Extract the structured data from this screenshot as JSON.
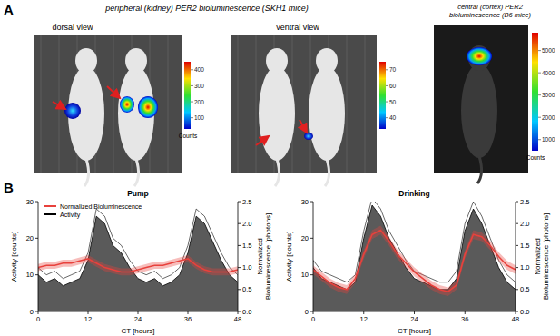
{
  "panel_a": {
    "label": "A",
    "title": "peripheral (kidney) PER2 bioluminescence (SKH1 mice)",
    "views": [
      {
        "label": "dorsal view",
        "colorbar": {
          "range": [
            30,
            450
          ],
          "ticks": [
            100,
            200,
            300,
            400
          ],
          "label": "Counts"
        }
      },
      {
        "label": "ventral view",
        "colorbar": {
          "range": [
            33,
            75
          ],
          "ticks": [
            40,
            50,
            60,
            70
          ]
        }
      }
    ],
    "central": {
      "lines": [
        "central (cortex) PER2",
        "bioluminescence (B6 mice)"
      ],
      "colorbar": {
        "range": [
          500,
          5800
        ],
        "ticks": [
          1000,
          2000,
          3000,
          4000,
          5000
        ],
        "label": "Counts"
      }
    }
  },
  "panel_b": {
    "label": "B"
  },
  "chart_data": [
    {
      "type": "line",
      "title": "Pump",
      "x": [
        0,
        2,
        4,
        6,
        8,
        10,
        12,
        14,
        16,
        18,
        20,
        22,
        24,
        26,
        28,
        30,
        32,
        34,
        36,
        38,
        40,
        42,
        44,
        46,
        48
      ],
      "xlim": [
        0,
        48
      ],
      "xticks": [
        0,
        12,
        24,
        36,
        48
      ],
      "xlabel": "CT [hours]",
      "ylabel": "Activity [counts]",
      "ylim": [
        0,
        30
      ],
      "yticks": [
        0,
        10,
        20,
        30
      ],
      "y2label": "Normalized Bioluminescence [photons]",
      "y2lim": [
        0,
        2.5
      ],
      "y2ticks": [
        {
          "value": 0,
          "label": "0.0"
        },
        {
          "value": 0.5,
          "label": "0.5"
        },
        {
          "value": 1,
          "label": "1.0"
        },
        {
          "value": 1.5,
          "label": "1.5"
        },
        {
          "value": 2,
          "label": "2.0"
        },
        {
          "value": 2.5,
          "label": "2.5"
        }
      ],
      "legend": "upper left",
      "series": [
        {
          "name": "Normalized Bioluminescence",
          "type": "line",
          "color": "#e8413c",
          "axis": "y2",
          "values": [
            1.0,
            1.05,
            1.05,
            1.1,
            1.1,
            1.15,
            1.2,
            1.1,
            1.0,
            0.95,
            0.9,
            0.9,
            0.95,
            1.0,
            1.05,
            1.05,
            1.1,
            1.15,
            1.2,
            1.05,
            0.95,
            0.9,
            0.9,
            0.9,
            0.95
          ],
          "error": [
            0.08,
            0.08,
            0.08,
            0.08,
            0.08,
            0.08,
            0.08,
            0.08,
            0.08,
            0.08,
            0.08,
            0.08,
            0.08,
            0.08,
            0.08,
            0.08,
            0.08,
            0.08,
            0.08,
            0.08,
            0.08,
            0.08,
            0.08,
            0.08,
            0.08
          ]
        },
        {
          "name": "Activity",
          "type": "area",
          "color": "#5a5a5a",
          "values": [
            10,
            8,
            9,
            7,
            8,
            9,
            14,
            26,
            24,
            18,
            16,
            12,
            9,
            8,
            9,
            7,
            8,
            10,
            16,
            26,
            24,
            19,
            14,
            10,
            8
          ],
          "error": [
            2,
            2,
            2,
            2,
            2,
            2,
            2,
            2,
            2,
            2,
            2,
            2,
            2,
            2,
            2,
            2,
            2,
            2,
            2,
            2,
            2,
            2,
            2,
            2,
            2
          ]
        }
      ]
    },
    {
      "type": "line",
      "title": "Drinking",
      "x": [
        0,
        2,
        4,
        6,
        8,
        10,
        12,
        14,
        16,
        18,
        20,
        22,
        24,
        26,
        28,
        30,
        32,
        34,
        36,
        38,
        40,
        42,
        44,
        46,
        48
      ],
      "xlim": [
        0,
        48
      ],
      "xticks": [
        0,
        12,
        24,
        36,
        48
      ],
      "xlabel": "CT [hours]",
      "ylabel": "Activity [counts]",
      "ylim": [
        0,
        30
      ],
      "yticks": [
        0,
        10,
        20,
        30
      ],
      "y2label": "Normalized Bioluminescence [photons]",
      "y2lim": [
        0,
        2.5
      ],
      "y2ticks": [
        {
          "value": 0,
          "label": "0.0"
        },
        {
          "value": 0.5,
          "label": "0.5"
        },
        {
          "value": 1,
          "label": "1.0"
        },
        {
          "value": 1.5,
          "label": "1.5"
        },
        {
          "value": 2,
          "label": "2.0"
        },
        {
          "value": 2.5,
          "label": "2.5"
        }
      ],
      "series": [
        {
          "type": "line",
          "color": "#e8413c",
          "axis": "y2",
          "values": [
            0.95,
            0.8,
            0.65,
            0.55,
            0.5,
            0.75,
            1.3,
            1.75,
            1.85,
            1.6,
            1.3,
            1.1,
            0.9,
            0.75,
            0.6,
            0.5,
            0.45,
            0.6,
            1.3,
            1.75,
            1.7,
            1.5,
            1.25,
            1.05,
            0.95
          ],
          "error": [
            0.1,
            0.1,
            0.1,
            0.1,
            0.1,
            0.1,
            0.1,
            0.1,
            0.1,
            0.1,
            0.1,
            0.1,
            0.1,
            0.1,
            0.1,
            0.1,
            0.1,
            0.1,
            0.1,
            0.1,
            0.1,
            0.1,
            0.1,
            0.1,
            0.1
          ]
        },
        {
          "type": "area",
          "color": "#5a5a5a",
          "values": [
            12,
            9,
            8,
            7,
            6,
            8,
            20,
            29,
            26,
            20,
            16,
            12,
            9,
            8,
            7,
            6,
            6,
            9,
            22,
            28,
            24,
            18,
            12,
            8,
            6
          ],
          "error": [
            2,
            2,
            2,
            2,
            2,
            2,
            2,
            2,
            2,
            2,
            2,
            2,
            2,
            2,
            2,
            2,
            2,
            2,
            2,
            2,
            2,
            2,
            2,
            2,
            2
          ]
        }
      ]
    }
  ]
}
